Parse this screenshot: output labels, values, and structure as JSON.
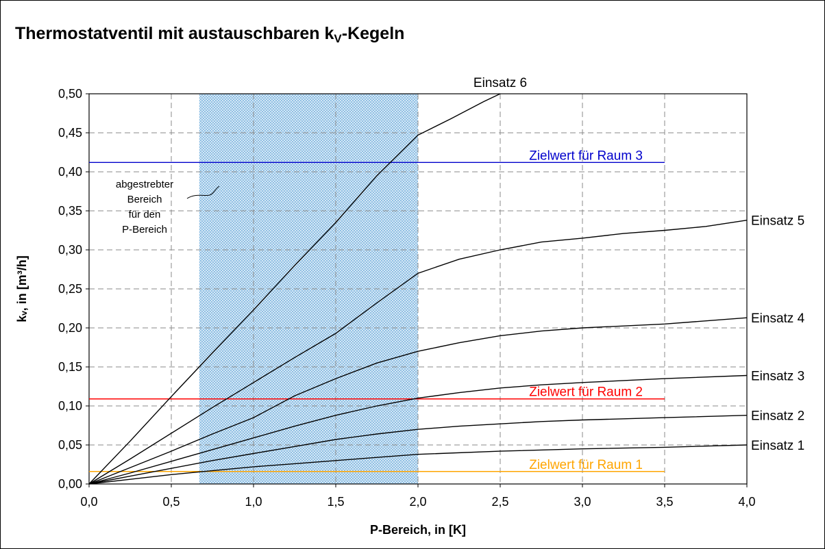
{
  "chart_data": {
    "type": "line",
    "title": "Thermostatventil mit austauschbaren k",
    "title_sub": "V",
    "title_suffix": "-Kegeln",
    "xlabel": "P-Bereich, in [K]",
    "ylabel": "kᵥ, in [m³/h]",
    "xlim": [
      0,
      4.0
    ],
    "ylim": [
      0,
      0.5
    ],
    "x_ticks": [
      "0,0",
      "0,5",
      "1,0",
      "1,5",
      "2,0",
      "2,5",
      "3,0",
      "3,5",
      "4,0"
    ],
    "y_ticks": [
      "0,00",
      "0,05",
      "0,10",
      "0,15",
      "0,20",
      "0,25",
      "0,30",
      "0,35",
      "0,40",
      "0,45",
      "0,50"
    ],
    "grid": true,
    "band": {
      "x_from": 0.67,
      "x_to": 2.0,
      "color": "#8fbfe3"
    },
    "band_note": [
      "abgestrebter",
      "Bereich",
      "für den",
      "P-Bereich"
    ],
    "series": [
      {
        "name": "Einsatz 1",
        "x": [
          0,
          0.25,
          0.5,
          0.75,
          1.0,
          1.25,
          1.5,
          1.75,
          2.0,
          2.5,
          3.0,
          3.5,
          4.0
        ],
        "y": [
          0,
          0.006,
          0.012,
          0.017,
          0.022,
          0.026,
          0.03,
          0.034,
          0.038,
          0.042,
          0.045,
          0.047,
          0.05
        ]
      },
      {
        "name": "Einsatz 2",
        "x": [
          0,
          0.25,
          0.5,
          0.75,
          1.0,
          1.25,
          1.5,
          1.75,
          2.0,
          2.25,
          2.5,
          2.75,
          3.0,
          3.5,
          4.0
        ],
        "y": [
          0,
          0.01,
          0.02,
          0.03,
          0.039,
          0.048,
          0.057,
          0.064,
          0.07,
          0.074,
          0.077,
          0.08,
          0.082,
          0.085,
          0.088
        ]
      },
      {
        "name": "Einsatz 3",
        "x": [
          0,
          0.25,
          0.5,
          0.75,
          1.0,
          1.25,
          1.5,
          1.75,
          2.0,
          2.25,
          2.5,
          2.75,
          3.0,
          3.5,
          4.0
        ],
        "y": [
          0,
          0.014,
          0.029,
          0.044,
          0.059,
          0.074,
          0.088,
          0.1,
          0.11,
          0.117,
          0.123,
          0.127,
          0.13,
          0.135,
          0.139
        ]
      },
      {
        "name": "Einsatz 4",
        "x": [
          0,
          0.25,
          0.5,
          0.75,
          1.0,
          1.25,
          1.5,
          1.75,
          2.0,
          2.25,
          2.5,
          2.75,
          3.0,
          3.5,
          4.0
        ],
        "y": [
          0,
          0.021,
          0.042,
          0.064,
          0.085,
          0.113,
          0.135,
          0.155,
          0.17,
          0.181,
          0.19,
          0.196,
          0.2,
          0.205,
          0.213
        ]
      },
      {
        "name": "Einsatz 5",
        "x": [
          0,
          0.25,
          0.5,
          0.75,
          1.0,
          1.25,
          1.5,
          1.75,
          2.0,
          2.25,
          2.5,
          2.75,
          3.0,
          3.25,
          3.5,
          3.75,
          4.0
        ],
        "y": [
          0,
          0.032,
          0.065,
          0.098,
          0.13,
          0.162,
          0.193,
          0.232,
          0.27,
          0.288,
          0.3,
          0.31,
          0.315,
          0.321,
          0.325,
          0.33,
          0.338
        ]
      },
      {
        "name": "Einsatz 6",
        "x": [
          0,
          0.25,
          0.5,
          0.75,
          1.0,
          1.25,
          1.5,
          1.75,
          2.0,
          2.2,
          2.4,
          2.5
        ],
        "y": [
          0,
          0.055,
          0.112,
          0.168,
          0.223,
          0.28,
          0.335,
          0.395,
          0.447,
          0.468,
          0.49,
          0.5
        ]
      }
    ],
    "targets": [
      {
        "label": "Zielwert für Raum 3",
        "y": 0.412,
        "x_to": 3.5,
        "color": "#0000cc"
      },
      {
        "label": "Zielwert für Raum 2",
        "y": 0.109,
        "x_to": 3.5,
        "color": "#ff0000"
      },
      {
        "label": "Zielwert für Raum 1",
        "y": 0.016,
        "x_to": 3.5,
        "color": "#ffa500"
      }
    ]
  }
}
